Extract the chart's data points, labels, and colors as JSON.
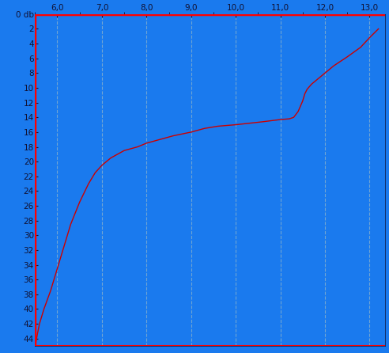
{
  "background_color": "#1a7aee",
  "x_min": 5.5,
  "x_max": 13.35,
  "y_min": 0,
  "y_max": 45,
  "x_ticks": [
    6.0,
    7.0,
    8.0,
    9.0,
    10.0,
    11.0,
    12.0,
    13.0
  ],
  "y_ticks": [
    0,
    2,
    4,
    6,
    8,
    10,
    12,
    14,
    16,
    18,
    20,
    22,
    24,
    26,
    28,
    30,
    32,
    34,
    36,
    38,
    40,
    42,
    44
  ],
  "y_label": "0 db",
  "x_tick_labels": [
    "6,0",
    "7,0",
    "8,0",
    "9,0",
    "10,0",
    "11,0",
    "12,0",
    "13,0"
  ],
  "line_color": "#cc0000",
  "top_line_color": "#ff0000",
  "left_line_color": "#ff0000",
  "grid_color": "#7aaad0",
  "tick_color": "#111133",
  "curve_x": [
    5.52,
    5.55,
    5.6,
    5.7,
    5.85,
    6.0,
    6.15,
    6.3,
    6.5,
    6.7,
    6.85,
    7.0,
    7.2,
    7.5,
    7.8,
    8.0,
    8.3,
    8.6,
    9.0,
    9.3,
    9.6,
    10.0,
    10.3,
    10.6,
    11.0,
    11.2,
    11.3,
    11.4,
    11.5,
    11.55,
    11.6,
    11.7,
    11.8,
    12.0,
    12.2,
    12.5,
    12.8,
    13.0,
    13.2
  ],
  "curve_y": [
    44.5,
    43.5,
    42.0,
    40.0,
    37.5,
    34.5,
    31.5,
    28.5,
    25.5,
    23.0,
    21.5,
    20.5,
    19.5,
    18.5,
    18.0,
    17.5,
    17.0,
    16.5,
    16.0,
    15.5,
    15.2,
    15.0,
    14.8,
    14.6,
    14.3,
    14.2,
    14.0,
    13.2,
    11.8,
    10.8,
    10.2,
    9.5,
    9.0,
    8.0,
    7.0,
    5.8,
    4.5,
    3.2,
    2.0
  ]
}
